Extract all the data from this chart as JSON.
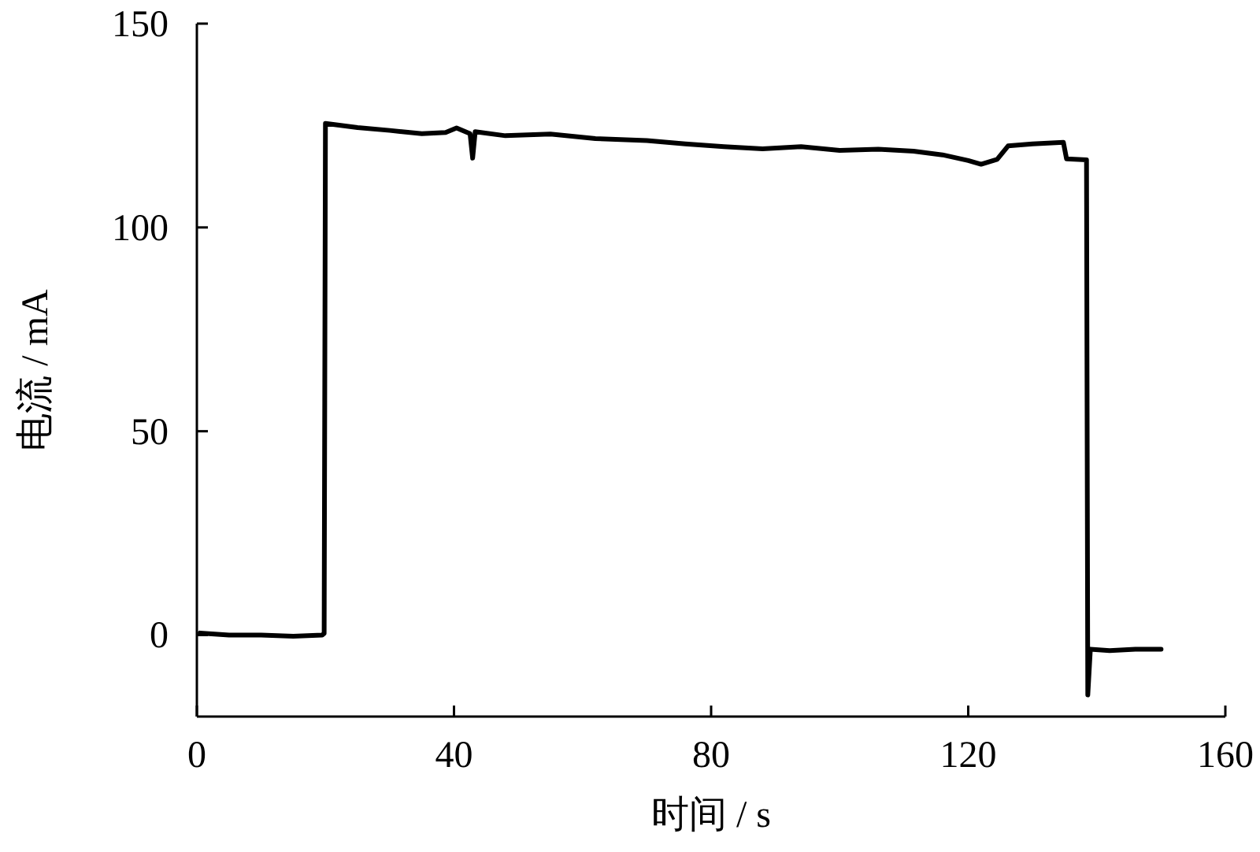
{
  "chart_data": {
    "type": "line",
    "xlabel": "时间 / s",
    "ylabel": "电流 / mA",
    "xlim": [
      0,
      160
    ],
    "ylim": [
      -20,
      150
    ],
    "xticks": [
      0,
      40,
      80,
      120,
      160
    ],
    "yticks": [
      0,
      50,
      100,
      150
    ],
    "grid": false,
    "marker": "none",
    "line_style": "solid",
    "series": [
      {
        "color": "#000000",
        "x": [
          0.5,
          5,
          10,
          15,
          19.5,
          19.8,
          20,
          25,
          30,
          35,
          38.7,
          40.4,
          42.5,
          42.9,
          43.3,
          48,
          55,
          62,
          70,
          76,
          82,
          88,
          94,
          100,
          106,
          111.5,
          116,
          120,
          122,
          124.5,
          126.2,
          130,
          134.8,
          135.3,
          138.4,
          138.6,
          139,
          142,
          146,
          150
        ],
        "values": [
          0.5,
          0,
          0,
          -0.3,
          0,
          0.4,
          125.5,
          124.5,
          123.8,
          123,
          123.3,
          124.4,
          123,
          117,
          123.5,
          122.5,
          122.9,
          121.8,
          121.3,
          120.5,
          119.8,
          119.3,
          119.8,
          118.9,
          119.2,
          118.7,
          117.8,
          116.4,
          115.5,
          116.7,
          120,
          120.5,
          120.9,
          116.8,
          116.6,
          -14.7,
          -3.5,
          -3.8,
          -3.5,
          -3.5
        ]
      }
    ]
  }
}
